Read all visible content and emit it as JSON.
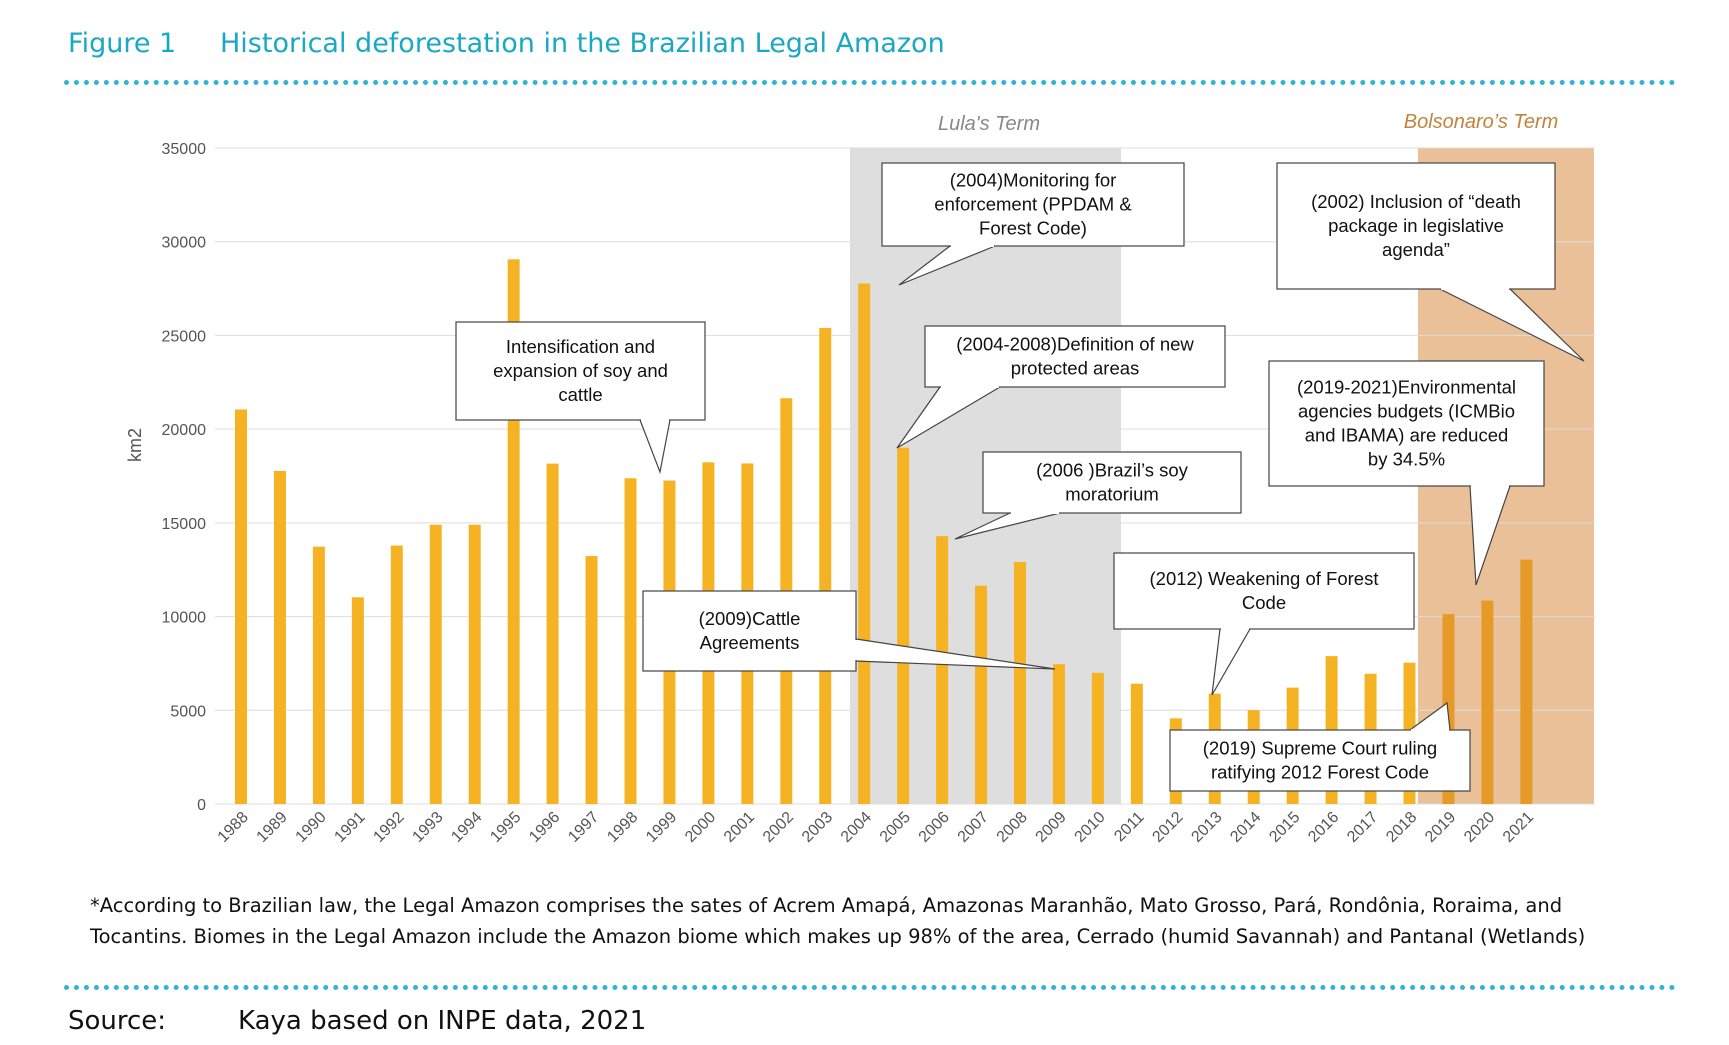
{
  "figure": {
    "number": "Figure 1",
    "title": "Historical deforestation in the Brazilian Legal Amazon"
  },
  "chart_data": {
    "type": "bar",
    "title": "",
    "xlabel": "",
    "ylabel": "km2",
    "ylim": [
      0,
      35000
    ],
    "yticks": [
      0,
      5000,
      10000,
      15000,
      20000,
      25000,
      30000,
      35000
    ],
    "grid": true,
    "categories": [
      "1988",
      "1989",
      "1990",
      "1991",
      "1992",
      "1993",
      "1994",
      "1995",
      "1996",
      "1997",
      "1998",
      "1999",
      "2000",
      "2001",
      "2002",
      "2003",
      "2004",
      "2005",
      "2006",
      "2007",
      "2008",
      "2009",
      "2010",
      "2011",
      "2012",
      "2013",
      "2014",
      "2015",
      "2016",
      "2017",
      "2018",
      "2019",
      "2020",
      "2021"
    ],
    "values": [
      21050,
      17770,
      13730,
      11030,
      13790,
      14900,
      14900,
      29060,
      18160,
      13230,
      17380,
      17260,
      18230,
      18170,
      21650,
      25400,
      27770,
      19010,
      14290,
      11650,
      12910,
      7460,
      7000,
      6420,
      4570,
      5890,
      5010,
      6210,
      7890,
      6950,
      7540,
      10130,
      10850,
      13040
    ],
    "colors": {
      "bar": "#f5b324",
      "bar_shaded": "#e69a27",
      "grid": "#dddddd",
      "lula_band": "#dedede",
      "bolsonaro_band": "#e9c098",
      "bolsonaro_text": "#c0843e",
      "lula_text": "#888888"
    },
    "periods": [
      {
        "label": "Lula's Term",
        "from": "2004",
        "to": "2010"
      },
      {
        "label": "Bolsonaro’s Term",
        "from": "2019",
        "to": "2021"
      }
    ],
    "annotations": [
      {
        "id": "soy",
        "lines": [
          "Intensification and",
          "expansion of soy and",
          "cattle"
        ],
        "points_to": "1999"
      },
      {
        "id": "ppdam",
        "lines": [
          "(2004)Monitoring for",
          "enforcement (PPDAM &",
          "Forest Code)"
        ],
        "points_to": "2004"
      },
      {
        "id": "protected",
        "lines": [
          "(2004-2008)Definition of new",
          "protected areas"
        ],
        "points_to": "2005"
      },
      {
        "id": "moratorium",
        "lines": [
          "(2006 )Brazil’s soy",
          "moratorium"
        ],
        "points_to": "2006"
      },
      {
        "id": "cattle",
        "lines": [
          "(2009)Cattle",
          "Agreements"
        ],
        "points_to": "2009"
      },
      {
        "id": "weakening",
        "lines": [
          "(2012) Weakening of Forest",
          "Code"
        ],
        "points_to": "2013"
      },
      {
        "id": "supreme",
        "lines": [
          "(2019) Supreme Court ruling",
          "ratifying 2012 Forest Code"
        ],
        "points_to": "2019"
      },
      {
        "id": "death",
        "lines": [
          "(2002) Inclusion of “death",
          "package in legislative",
          "agenda”"
        ],
        "points_to": "2021"
      },
      {
        "id": "budgets",
        "lines": [
          "(2019-2021)Environmental",
          "agencies budgets (ICMBio",
          "and IBAMA) are reduced",
          "by 34.5%"
        ],
        "points_to": "2020"
      }
    ]
  },
  "footnote": {
    "line1": "*According to Brazilian law, the Legal Amazon comprises the sates of Acrem Amapá, Amazonas Maranhão, Mato Grosso, Pará, Rondônia, Roraima, and",
    "line2": "Tocantins. Biomes in the Legal Amazon include the Amazon biome which makes up 98% of the area, Cerrado  (humid Savannah) and Pantanal (Wetlands)"
  },
  "source": {
    "label": "Source:",
    "text": "Kaya based on INPE data, 2021"
  }
}
